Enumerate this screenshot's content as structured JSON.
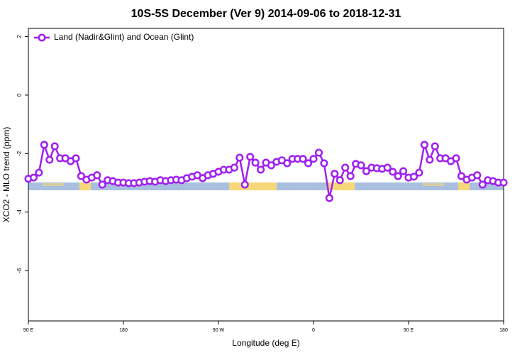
{
  "chart_data": {
    "type": "line",
    "title": "10S-5S December (Ver 9)   2014-09-06 to 2018-12-31",
    "xlabel": "Longitude (deg E)",
    "ylabel": "XCO2 - MLO trend (ppm)",
    "x": [
      90,
      95,
      100,
      105,
      110,
      115,
      120,
      125,
      130,
      135,
      140,
      145,
      150,
      155,
      160,
      165,
      170,
      175,
      180,
      185,
      190,
      195,
      200,
      205,
      210,
      215,
      220,
      225,
      230,
      235,
      240,
      245,
      250,
      255,
      260,
      265,
      270,
      275,
      280,
      285,
      290,
      295,
      300,
      305,
      310,
      315,
      320,
      325,
      330,
      335,
      340,
      345,
      350,
      355,
      360,
      365,
      370,
      375,
      380,
      385,
      390,
      395,
      400,
      405,
      410,
      415,
      420,
      425,
      430,
      435,
      440,
      445,
      450,
      455,
      460,
      465,
      470,
      475,
      480,
      485,
      490,
      495,
      500,
      505,
      510,
      515,
      520,
      525,
      530,
      535,
      540
    ],
    "series": [
      {
        "name": "Land (Nadir&Glint) and Ocean (Glint)",
        "color": "#a020f0",
        "values": [
          -2.86,
          -2.82,
          -2.65,
          -1.7,
          -2.21,
          -1.75,
          -2.16,
          -2.16,
          -2.26,
          -2.16,
          -2.77,
          -2.89,
          -2.82,
          -2.74,
          -3.06,
          -2.91,
          -2.94,
          -2.99,
          -2.99,
          -3.01,
          -3.01,
          -2.99,
          -2.96,
          -2.94,
          -2.96,
          -2.91,
          -2.94,
          -2.91,
          -2.89,
          -2.91,
          -2.84,
          -2.79,
          -2.74,
          -2.84,
          -2.74,
          -2.69,
          -2.62,
          -2.55,
          -2.55,
          -2.48,
          -2.14,
          -3.06,
          -2.11,
          -2.31,
          -2.55,
          -2.31,
          -2.4,
          -2.28,
          -2.23,
          -2.33,
          -2.18,
          -2.18,
          -2.18,
          -2.33,
          -2.18,
          -1.97,
          -2.33,
          -3.52,
          -2.69,
          -2.91,
          -2.48,
          -2.77,
          -2.35,
          -2.4,
          -2.6,
          -2.48,
          -2.5,
          -2.52,
          -2.48,
          -2.62,
          -2.77,
          -2.6,
          -2.82,
          -2.79,
          -2.65,
          -1.7,
          -2.21,
          -1.75,
          -2.16,
          -2.16,
          -2.26,
          -2.16,
          -2.77,
          -2.89,
          -2.82,
          -2.74,
          -3.06,
          -2.91,
          -2.94,
          -2.99,
          -2.99
        ]
      }
    ],
    "xlim": [
      90,
      540
    ],
    "xticks": [
      {
        "value": 90,
        "label": "90 E"
      },
      180,
      {
        "value": 270,
        "label": "90 W"
      },
      {
        "value": 360,
        "label": "0"
      },
      {
        "value": 450,
        "label": "90 E"
      },
      {
        "value": 540,
        "label": "180"
      }
    ],
    "ylim": [
      -7.72,
      2.28
    ],
    "yticks": [
      -6,
      -4,
      -2,
      0,
      2
    ],
    "grid": false,
    "legend": "top-left"
  }
}
